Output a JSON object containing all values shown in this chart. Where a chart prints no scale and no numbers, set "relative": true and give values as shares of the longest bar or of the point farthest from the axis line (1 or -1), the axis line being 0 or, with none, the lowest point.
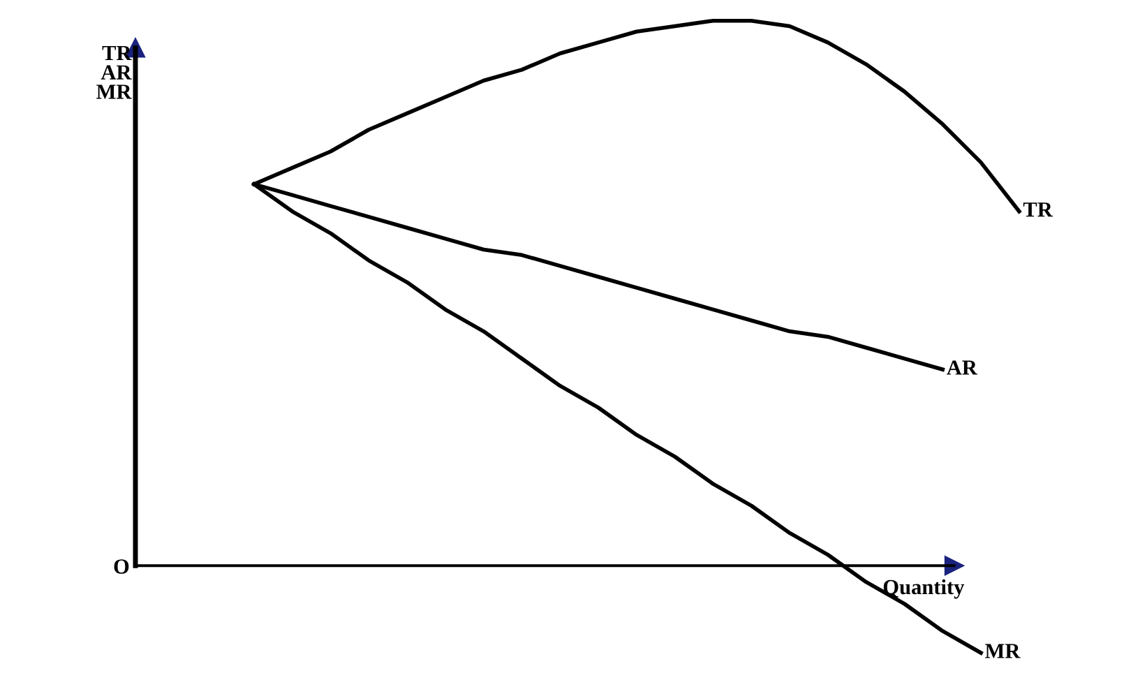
{
  "chart_data": {
    "type": "line",
    "relative": true,
    "ylabel": "TR\nAR\nMR",
    "xlabel": "Quantity",
    "legend": false,
    "marker": "none",
    "line_style": "solid",
    "grid": false,
    "categories": [
      null,
      null,
      null,
      null,
      null,
      null,
      null,
      null,
      null,
      null,
      null,
      null,
      null,
      null,
      null,
      null,
      null,
      null,
      null,
      null,
      null
    ],
    "annotations": [
      "O"
    ],
    "series": [
      {
        "name": "TR",
        "color": "#000000",
        "values": [
          0.7,
          0.73,
          0.76,
          0.8,
          0.83,
          0.86,
          0.89,
          0.91,
          0.94,
          0.96,
          0.98,
          0.99,
          1.0,
          1.0,
          0.99,
          0.96,
          0.92,
          0.87,
          0.81,
          0.74,
          0.65
        ]
      },
      {
        "name": "AR",
        "color": "#000000",
        "values": [
          0.7,
          0.68,
          0.66,
          0.64,
          0.62,
          0.6,
          0.58,
          0.57,
          0.55,
          0.53,
          0.51,
          0.49,
          0.47,
          0.45,
          0.43,
          0.42,
          0.4,
          0.38,
          0.36,
          null,
          null
        ]
      },
      {
        "name": "MR",
        "color": "#000000",
        "values": [
          0.7,
          0.65,
          0.61,
          0.56,
          0.52,
          0.47,
          0.43,
          0.38,
          0.33,
          0.29,
          0.24,
          0.2,
          0.15,
          0.11,
          0.06,
          0.02,
          -0.03,
          -0.07,
          -0.12,
          -0.16,
          null
        ]
      }
    ]
  }
}
